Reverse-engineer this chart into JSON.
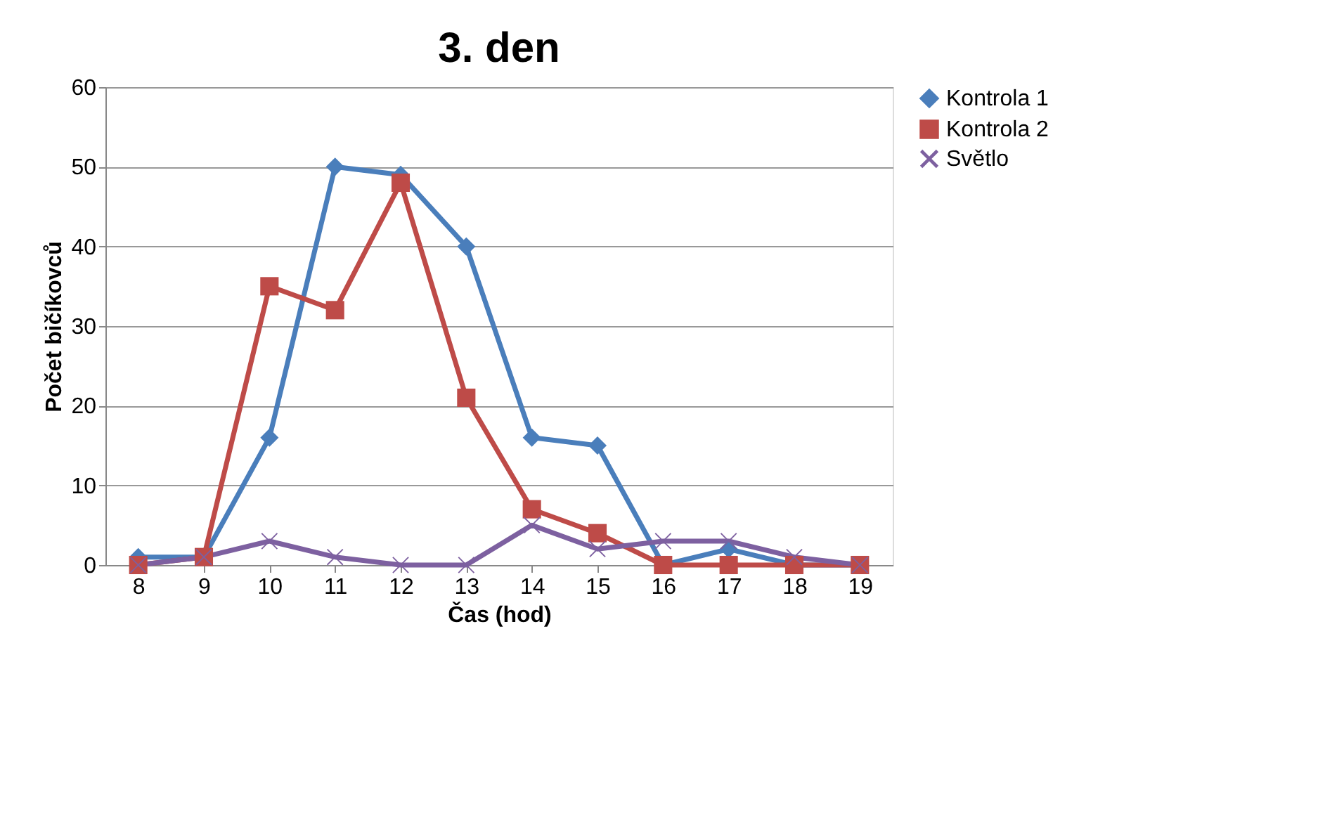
{
  "chart_data": {
    "type": "line",
    "title": "3. den",
    "xlabel": "Čas (hod)",
    "ylabel": "Počet bičíkovců",
    "categories": [
      "8",
      "9",
      "10",
      "11",
      "12",
      "13",
      "14",
      "15",
      "16",
      "17",
      "18",
      "19"
    ],
    "series": [
      {
        "name": "Kontrola 1",
        "color": "#4a7ebb",
        "marker": "diamond",
        "values": [
          1,
          1,
          16,
          50,
          49,
          40,
          16,
          15,
          0,
          2,
          0,
          0
        ]
      },
      {
        "name": "Kontrola 2",
        "color": "#be4b48",
        "marker": "square",
        "values": [
          0,
          1,
          35,
          32,
          48,
          21,
          7,
          4,
          0,
          0,
          0,
          0
        ]
      },
      {
        "name": "Světlo",
        "color": "#7d60a0",
        "marker": "cross",
        "values": [
          0,
          1,
          3,
          1,
          0,
          0,
          5,
          2,
          3,
          3,
          1,
          0
        ]
      }
    ],
    "ylim": [
      0,
      60
    ],
    "yticks": [
      0,
      10,
      20,
      30,
      40,
      50,
      60
    ],
    "grid": "y",
    "legend": "right",
    "line_style": "solid"
  }
}
